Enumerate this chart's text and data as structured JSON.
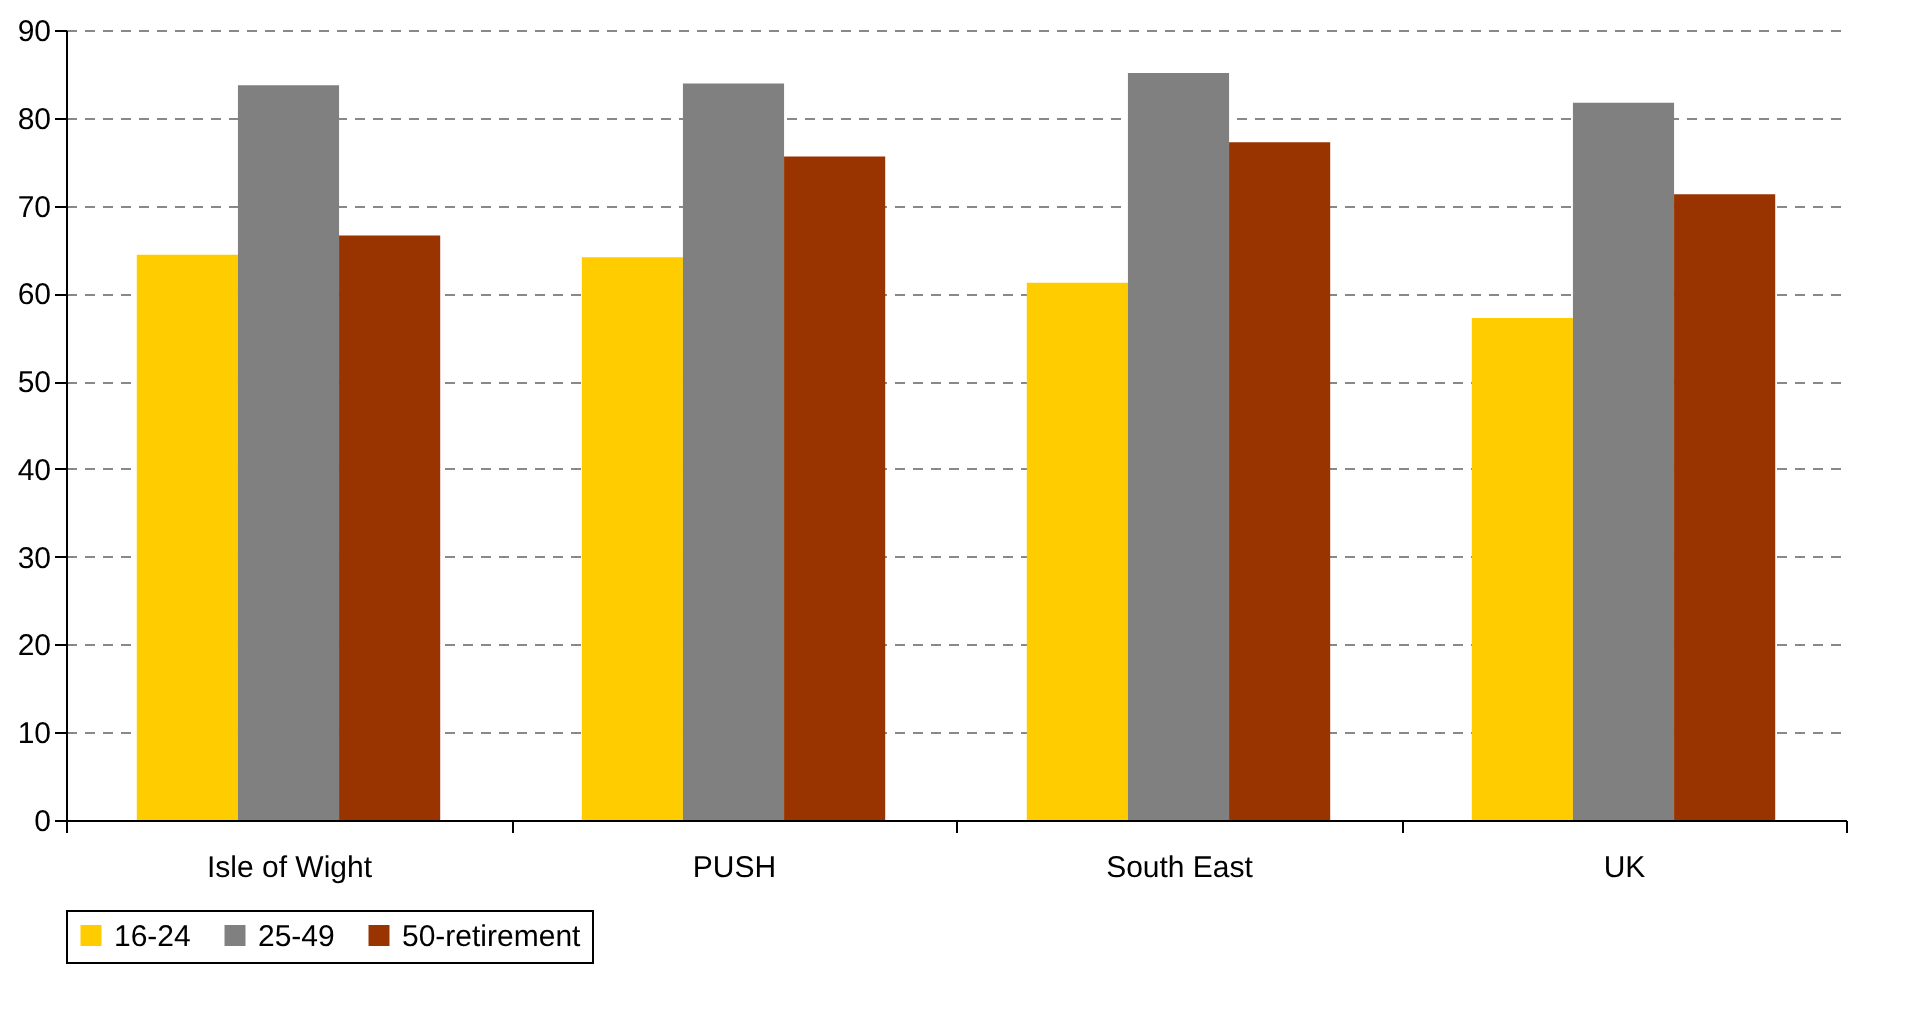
{
  "chart_data": {
    "type": "bar",
    "categories": [
      "Isle of Wight",
      "PUSH",
      "South East",
      "UK"
    ],
    "series": [
      {
        "name": "16-24",
        "color": "#ffcc00",
        "values": [
          64.4,
          64.1,
          61.2,
          57.2
        ]
      },
      {
        "name": "25-49",
        "color": "#808080",
        "values": [
          83.7,
          83.9,
          85.1,
          81.7
        ]
      },
      {
        "name": "50-retirement",
        "color": "#993300",
        "values": [
          66.6,
          75.6,
          77.2,
          71.3
        ]
      }
    ],
    "ylim": [
      0,
      90
    ],
    "yticks": [
      0,
      10,
      20,
      30,
      40,
      50,
      60,
      70,
      80,
      90
    ],
    "grid": "y",
    "legend": "bottom"
  }
}
